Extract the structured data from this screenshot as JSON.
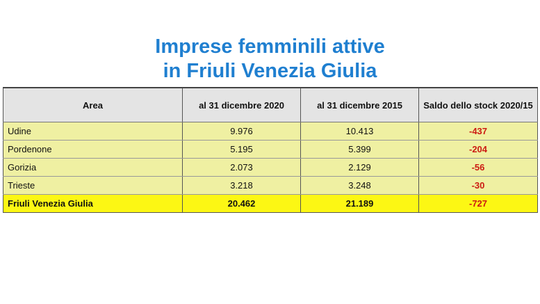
{
  "title": {
    "line1": "Imprese femminili attive",
    "line2": "in Friuli Venezia Giulia"
  },
  "table": {
    "headers": [
      "Area",
      "al 31 dicembre 2020",
      "al 31 dicembre 2015",
      "Saldo dello stock 2020/15"
    ],
    "rows": [
      {
        "area": "Udine",
        "y2020": "9.976",
        "y2015": "10.413",
        "saldo": "-437"
      },
      {
        "area": "Pordenone",
        "y2020": "5.195",
        "y2015": "5.399",
        "saldo": "-204"
      },
      {
        "area": "Gorizia",
        "y2020": "2.073",
        "y2015": "2.129",
        "saldo": "-56"
      },
      {
        "area": "Trieste",
        "y2020": "3.218",
        "y2015": "3.248",
        "saldo": "-30"
      }
    ],
    "total": {
      "area": "Friuli Venezia Giulia",
      "y2020": "20.462",
      "y2015": "21.189",
      "saldo": "-727"
    }
  },
  "colors": {
    "title": "#1f7fd0",
    "header_bg": "#e4e4e4",
    "row_bg": "#eff0a2",
    "total_bg": "#fcf714",
    "negative": "#cc1a12"
  }
}
